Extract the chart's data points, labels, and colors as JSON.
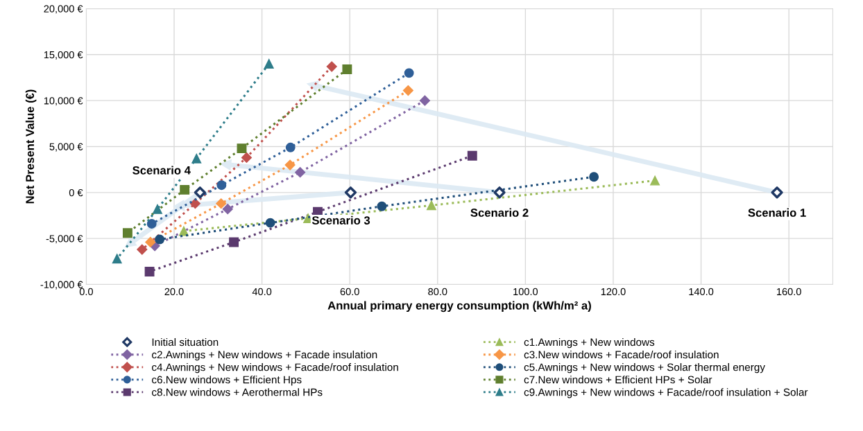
{
  "chart_data": {
    "type": "line",
    "xlabel": "Annual primary energy consumption (kWh/m² a)",
    "ylabel": "Net Present Value (€)",
    "xlim": [
      0,
      170
    ],
    "ylim": [
      -10000,
      20000
    ],
    "xticks": [
      {
        "value": 0,
        "label": "0.0"
      },
      {
        "value": 20,
        "label": "20.0"
      },
      {
        "value": 40,
        "label": "40.0"
      },
      {
        "value": 60,
        "label": "60.0"
      },
      {
        "value": 80,
        "label": "80.0"
      },
      {
        "value": 100,
        "label": "100.0"
      },
      {
        "value": 120,
        "label": "120.0"
      },
      {
        "value": 140,
        "label": "140.0"
      },
      {
        "value": 160,
        "label": "160.0"
      }
    ],
    "yticks": [
      {
        "value": -10000,
        "label": "-10,000 €"
      },
      {
        "value": -5000,
        "label": "-5,000 €"
      },
      {
        "value": 0,
        "label": "0 €"
      },
      {
        "value": 5000,
        "label": "5,000 €"
      },
      {
        "value": 10000,
        "label": "10,000 €"
      },
      {
        "value": 15000,
        "label": "15,000 €"
      },
      {
        "value": 20000,
        "label": "20,000 €"
      }
    ],
    "grid": true,
    "legend": "bottom",
    "line_style": "dotted",
    "series": [
      {
        "name": "Initial situation",
        "type": "scatter",
        "marker": "diamond",
        "color": "#1f3864",
        "x": [
          157.3,
          94.1,
          60.2,
          25.9
        ],
        "values": [
          0,
          0,
          0,
          0
        ]
      },
      {
        "name": "c2.Awnings + New windows + Facade insulation",
        "marker": "diamond",
        "color": "#8064a2",
        "x": [
          77.1,
          48.7,
          32.2,
          15.6
        ],
        "values": [
          10000,
          2200,
          -1800,
          -5800
        ]
      },
      {
        "name": "c4.Awnings + New windows + Facade/roof insulation",
        "marker": "diamond",
        "color": "#c0504d",
        "x": [
          55.9,
          36.5,
          24.8,
          12.7
        ],
        "values": [
          13700,
          3800,
          -1200,
          -6200
        ]
      },
      {
        "name": "c6.New windows + Efficient Hps",
        "marker": "circle",
        "color": "#2f5f98",
        "x": [
          73.5,
          46.5,
          30.8,
          14.9
        ],
        "values": [
          13000,
          4900,
          800,
          -3400
        ]
      },
      {
        "name": "c8.New windows + Aerothermal HPs",
        "marker": "square",
        "color": "#5b3a6e",
        "x": [
          87.9,
          52.7,
          33.6,
          14.4
        ],
        "values": [
          4000,
          -2100,
          -5400,
          -8600
        ]
      },
      {
        "name": "c1.Awnings + New windows",
        "marker": "triangle",
        "color": "#9bbb59",
        "x": [
          129.5,
          78.6,
          50.5,
          22.2
        ],
        "values": [
          1300,
          -1400,
          -2800,
          -4200
        ]
      },
      {
        "name": "c3.New windows + Facade/roof insulation",
        "marker": "diamond",
        "color": "#f79646",
        "x": [
          73.3,
          46.4,
          30.7,
          14.6
        ],
        "values": [
          11100,
          3000,
          -1200,
          -5400
        ]
      },
      {
        "name": "c5.Awnings + New windows + Solar thermal energy",
        "marker": "circle",
        "color": "#1f4e79",
        "x": [
          115.6,
          67.3,
          41.9,
          16.7
        ],
        "values": [
          1700,
          -1500,
          -3300,
          -5100
        ]
      },
      {
        "name": "c7.New windows + Efficient HPs + Solar",
        "marker": "square",
        "color": "#5f7f2e",
        "x": [
          59.4,
          35.4,
          22.4,
          9.4
        ],
        "values": [
          13400,
          4800,
          300,
          -4400
        ]
      },
      {
        "name": "c9.Awnings + New windows + Facade/roof insulation + Solar",
        "marker": "triangle",
        "color": "#2e7d8a",
        "x": [
          41.6,
          25.1,
          16.2,
          7.0
        ],
        "values": [
          14000,
          3700,
          -1800,
          -7200
        ]
      }
    ],
    "annotations": [
      {
        "text": "Scenario 1",
        "x": 157.3,
        "y": 0
      },
      {
        "text": "Scenario 2",
        "x": 94.1,
        "y": 0
      },
      {
        "text": "Scenario 3",
        "x": 60.2,
        "y": 0
      },
      {
        "text": "Scenario 4",
        "x": 25.9,
        "y": 0
      }
    ]
  }
}
